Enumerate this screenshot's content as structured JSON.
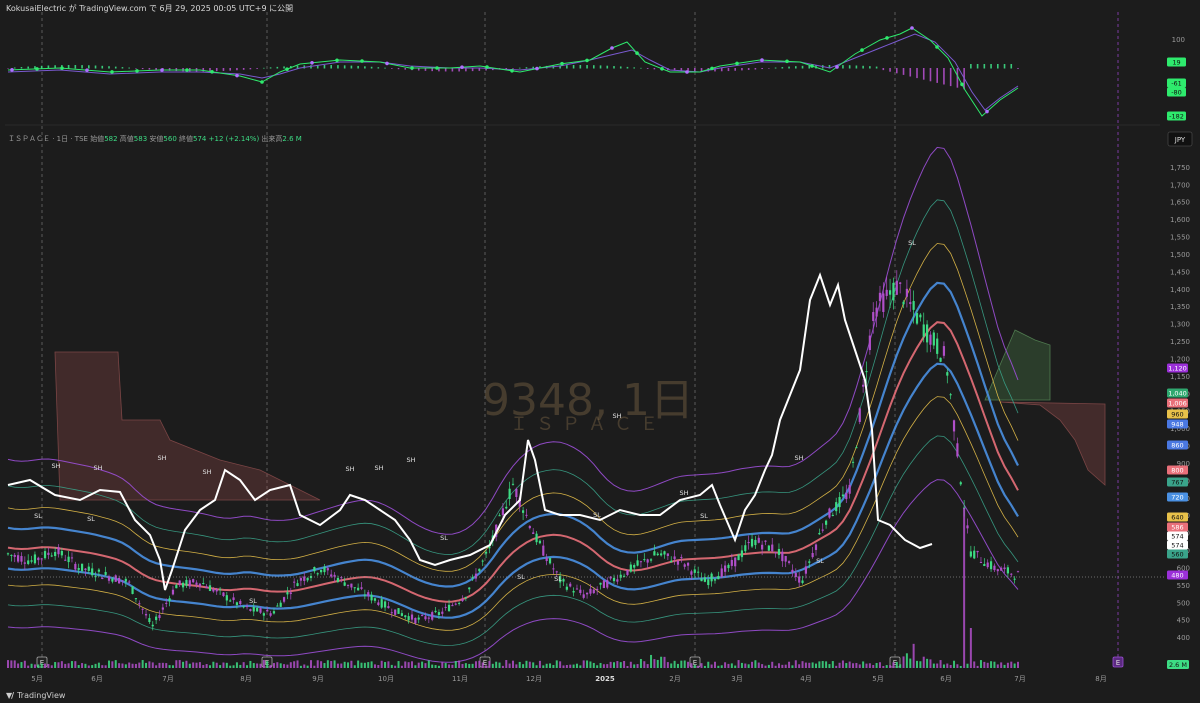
{
  "header": {
    "text": "KokusaiElectric が TradingView.com で 6月 29, 2025 00:05 UTC+9 に公開"
  },
  "legend": {
    "prefix": "ＩＳＰＡＣＥ · 1日 · TSE",
    "open_label": "始値",
    "open": "582",
    "high_label": "高値",
    "high": "583",
    "low_label": "安値",
    "low": "560",
    "close_label": "終値",
    "close": "574",
    "change": "+12 (+2.14%)",
    "volume_label": "出来高",
    "volume": "2.6 M"
  },
  "watermark": {
    "symbol": "9348, 1日",
    "name": "ＩＳＰＡＣＥ"
  },
  "footer": {
    "brand": "TradingView"
  },
  "currency": "JPY",
  "colors": {
    "up": "#3ddc84",
    "down": "#b04fc9",
    "white_line": "#ffffff",
    "blue_band": "#4a90e2",
    "red_band": "#e9707a",
    "yellow_band": "#e8c14a",
    "teal_band": "#3aa38a",
    "purple_band": "#9b4fd6",
    "osc_line": "#2eea6d"
  },
  "chart_data": [
    {
      "type": "line",
      "title": "",
      "x_axis": {
        "labels": [
          "5月",
          "6月",
          "7月",
          "8月",
          "9月",
          "10月",
          "11月",
          "12月",
          "2025",
          "2月",
          "3月",
          "4月",
          "5月",
          "6月",
          "7月",
          "8月"
        ]
      },
      "y_axis": {
        "ticks": [
          400,
          450,
          500,
          550,
          600,
          650,
          700,
          750,
          800,
          850,
          900,
          950,
          1000,
          1050,
          1100,
          1150,
          1200,
          1250,
          1300,
          1350,
          1400,
          1450,
          1500,
          1550,
          1600,
          1650,
          1700,
          1750
        ]
      },
      "price_labels": [
        {
          "value": "1,120",
          "color": "#9b30d9"
        },
        {
          "value": "1,040",
          "color": "#2fa86f"
        },
        {
          "value": "1,006",
          "color": "#e9707a"
        },
        {
          "value": "960",
          "color": "#e8c14a"
        },
        {
          "value": "948",
          "color": "#4a78e2"
        },
        {
          "value": "860",
          "color": "#4a78e2"
        },
        {
          "value": "800",
          "color": "#e9707a"
        },
        {
          "value": "767",
          "color": "#3aa38a"
        },
        {
          "value": "720",
          "color": "#4a90e2"
        },
        {
          "value": "640",
          "color": "#e8c14a"
        },
        {
          "value": "586",
          "color": "#e9707a"
        },
        {
          "value": "574",
          "color": "#ffffff"
        },
        {
          "value": "574",
          "color": "#ffffff"
        },
        {
          "value": "560",
          "color": "#3aa38a"
        },
        {
          "value": "480",
          "color": "#9b30d9"
        }
      ],
      "series": [
        {
          "values": [
            640,
            620,
            650,
            600,
            580,
            560,
            430,
            550,
            560,
            520,
            480,
            470,
            560,
            600,
            560,
            520,
            480,
            450,
            470,
            520,
            650,
            840,
            680,
            560,
            520,
            560,
            600,
            640,
            620,
            560,
            600,
            680,
            650,
            560,
            740,
            820,
            1340,
            1410,
            1300,
            1200,
            650,
            600,
            580
          ]
        }
      ],
      "annotations": [
        "SH",
        "SH",
        "SH",
        "SH",
        "SH",
        "SH",
        "SH",
        "SH",
        "SH",
        "SH",
        "SL",
        "SL",
        "SL",
        "SL",
        "SL",
        "SL",
        "SL",
        "SL",
        "SL",
        "SL"
      ],
      "event_marker": "E",
      "volume_label": "2.6 M"
    },
    {
      "type": "line",
      "title": "",
      "y_axis": {
        "ticks": [
          100
        ]
      },
      "labels": [
        {
          "value": "19",
          "color": "#2eea6d"
        },
        {
          "value": "-61",
          "color": "#2eea6d"
        },
        {
          "value": "-80",
          "color": "#2eea6d"
        },
        {
          "value": "-182",
          "color": "#2eea6d"
        }
      ]
    }
  ]
}
